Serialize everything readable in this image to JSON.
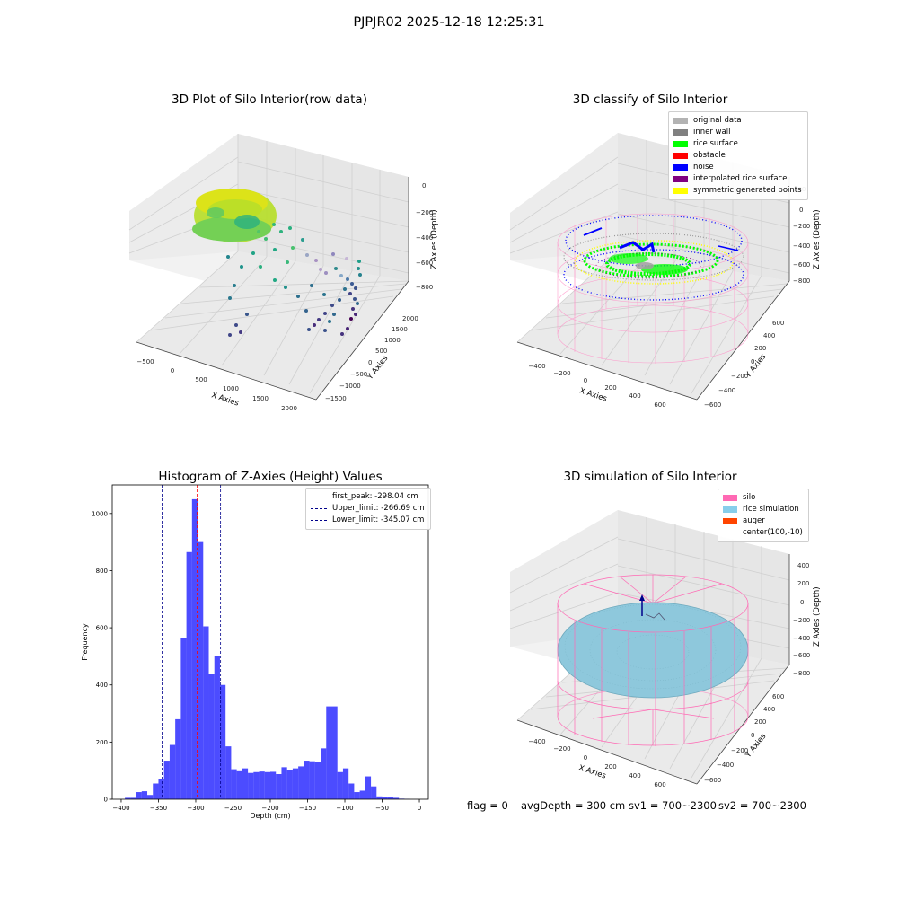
{
  "figure": {
    "suptitle": "PJPJR02 2025-12-18 12:25:31"
  },
  "plot1": {
    "title": "3D Plot of Silo Interior(row data)",
    "xlabel": "X Axies",
    "ylabel": "Y Axies",
    "zlabel": "Z Axies (Depth)",
    "xticks": [
      "−500",
      "0",
      "500",
      "1000",
      "1500",
      "2000"
    ],
    "yticks": [
      "−1500",
      "−1000",
      "−500",
      "0",
      "500",
      "1000",
      "1500",
      "2000"
    ],
    "zticks": [
      "0",
      "−200",
      "−400",
      "−600",
      "−800"
    ]
  },
  "plot2": {
    "title": "3D classify of Silo Interior",
    "xlabel": "X Axies",
    "ylabel": "Y Axies",
    "zlabel": "Z Axies (Depth)",
    "xticks": [
      "−400",
      "−200",
      "0",
      "200",
      "400",
      "600"
    ],
    "yticks": [
      "−600",
      "−400",
      "−200",
      "0",
      "200",
      "400",
      "600"
    ],
    "zticks": [
      "200",
      "0",
      "−200",
      "−400",
      "−600",
      "−800"
    ],
    "legend": [
      {
        "label": "original data",
        "color": "#b3b3b3"
      },
      {
        "label": "inner wall",
        "color": "#808080"
      },
      {
        "label": "rice surface",
        "color": "#00ff00"
      },
      {
        "label": "obstacle",
        "color": "#ff0000"
      },
      {
        "label": "noise",
        "color": "#0000ff"
      },
      {
        "label": "interpolated rice surface",
        "color": "#800080"
      },
      {
        "label": "symmetric generated points",
        "color": "#ffff00"
      }
    ]
  },
  "plot4": {
    "title": "3D simulation of Silo Interior",
    "xlabel": "X Axies",
    "ylabel": "Y Axies",
    "zlabel": "Z Axies (Depth)",
    "xticks": [
      "−400",
      "−200",
      "0",
      "200",
      "400",
      "600"
    ],
    "yticks": [
      "−600",
      "−400",
      "−200",
      "0",
      "200",
      "400",
      "600"
    ],
    "zticks": [
      "400",
      "200",
      "0",
      "−200",
      "−400",
      "−600",
      "−800"
    ],
    "legend": [
      {
        "label": "silo",
        "color": "#ff69b4"
      },
      {
        "label": "rice simulation",
        "color": "#87ceeb"
      },
      {
        "label": "auger",
        "color": "#ff4500"
      },
      {
        "label": "center(100,-10)",
        "color": ""
      }
    ]
  },
  "status": {
    "flag": "flag = 0",
    "avg_depth": "avgDepth = 300 cm",
    "sv1": "sv1 = 700~2300",
    "sv2": "sv2 = 700~2300"
  },
  "chart_data": {
    "type": "bar",
    "title": "Histogram of Z-Axies (Height) Values",
    "xlabel": "Depth (cm)",
    "ylabel": "Frequency",
    "xlim": [
      -412,
      12
    ],
    "ylim": [
      0,
      1100
    ],
    "xticks": [
      -400,
      -350,
      -300,
      -250,
      -200,
      -150,
      -100,
      -50,
      0
    ],
    "yticks": [
      0,
      200,
      400,
      600,
      800,
      1000
    ],
    "bar_color": "#0000ff",
    "bin_start": -395,
    "bin_width": 7.5,
    "values": [
      5,
      5,
      25,
      28,
      15,
      55,
      72,
      135,
      190,
      280,
      565,
      865,
      1050,
      900,
      605,
      440,
      500,
      400,
      185,
      105,
      98,
      108,
      92,
      95,
      97,
      95,
      96,
      88,
      112,
      103,
      108,
      115,
      135,
      133,
      130,
      178,
      325,
      325,
      95,
      108,
      55,
      25,
      30,
      80,
      45,
      10,
      8,
      8,
      5,
      2,
      1
    ],
    "legend": [
      {
        "label": "first_peak: -298.04 cm",
        "color": "#ff0000",
        "x": -298.04
      },
      {
        "label": "Upper_limit: -266.69 cm",
        "color": "#00008b",
        "x": -266.69
      },
      {
        "label": "Lower_limit: -345.07 cm",
        "color": "#00008b",
        "x": -345.07
      }
    ],
    "legend_position": "upper right"
  }
}
